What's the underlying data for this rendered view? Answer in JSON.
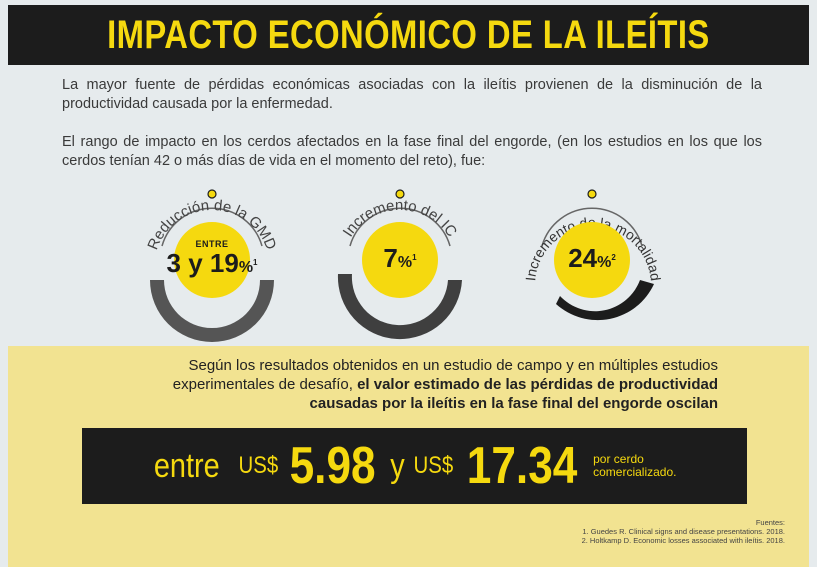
{
  "header": {
    "title": "IMPACTO ECONÓMICO DE LA ILEÍTIS"
  },
  "intro": {
    "p1": "La mayor fuente de pérdidas económicas asociadas con la ileítis provienen de la disminución de la productividad causada por la enfermedad.",
    "p2": "El rango de impacto en los cerdos afectados en la fase final del engorde, (en los estudios en los que los cerdos tenían 42 o más días de vida en el momento del reto), fue:"
  },
  "gauges": [
    {
      "label": "Reducción de la GMD",
      "prefix": "ENTRE",
      "value": "3 y 19",
      "unit": "%",
      "ref": "1",
      "level": 0.5
    },
    {
      "label": "Incremento del IC",
      "prefix": "",
      "value": "7",
      "unit": "%",
      "ref": "1",
      "level": 0.6
    },
    {
      "label": "Incremento de la mortalidad",
      "prefix": "",
      "value": "24",
      "unit": "%",
      "ref": "2",
      "level": 0.78
    }
  ],
  "summary": {
    "text_normal": "Según los resultados obtenidos en un estudio de campo y en múltiples estudios experimentales de desafío, ",
    "text_bold": "el valor estimado de las pérdidas de productividad causadas por la ileítis en la fase final del engorde oscilan"
  },
  "price": {
    "entre": "entre",
    "currency1": "US$",
    "low": "5.98",
    "y": "y",
    "currency2": "US$",
    "high": "17.34",
    "unit": "por cerdo comercializado."
  },
  "sources": {
    "title": "Fuentes:",
    "s1": "1. Guedes R. Clinical signs and disease presentations. 2018.",
    "s2": "2. Holtkamp D. Economic losses associated with ileítis. 2018."
  },
  "colors": {
    "yellow": "#f5d90f",
    "dark": "#1c1c1c",
    "gray": "#555555",
    "panel": "#f2e391"
  }
}
